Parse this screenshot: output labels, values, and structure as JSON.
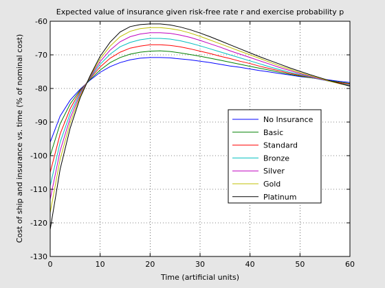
{
  "chart_data": {
    "type": "line",
    "title": "Expected value of insurance given risk-free rate r and exercise probability p",
    "xlabel": "Time (artificial units)",
    "ylabel": "Cost of ship and insurance vs. time (% of nominal cost)",
    "xlim": [
      0,
      60
    ],
    "ylim": [
      -130,
      -60
    ],
    "xticks": [
      0,
      10,
      20,
      30,
      40,
      50,
      60
    ],
    "yticks": [
      -130,
      -120,
      -110,
      -100,
      -90,
      -80,
      -70,
      -60
    ],
    "grid": true,
    "legend_position": "right",
    "x": [
      0,
      2,
      4,
      6,
      8,
      10,
      12,
      14,
      16,
      18,
      20,
      22,
      24,
      26,
      28,
      30,
      32,
      34,
      36,
      38,
      40,
      42,
      44,
      46,
      48,
      50,
      52,
      54,
      56,
      58,
      60
    ],
    "series": [
      {
        "name": "No Insurance",
        "color": "#0000ff",
        "values": [
          -96,
          -88.2,
          -83.5,
          -80.2,
          -77.5,
          -75.2,
          -73.5,
          -72.3,
          -71.5,
          -71.0,
          -70.8,
          -70.8,
          -70.9,
          -71.2,
          -71.5,
          -71.9,
          -72.3,
          -72.8,
          -73.3,
          -73.7,
          -74.2,
          -74.7,
          -75.1,
          -75.6,
          -76.0,
          -76.5,
          -76.8,
          -77.2,
          -77.5,
          -77.9,
          -78.2
        ]
      },
      {
        "name": "Basic",
        "color": "#008000",
        "values": [
          -100,
          -90.5,
          -84.6,
          -80.5,
          -77.3,
          -74.5,
          -72.3,
          -70.8,
          -69.8,
          -69.2,
          -68.9,
          -68.8,
          -69.0,
          -69.4,
          -69.9,
          -70.4,
          -71.0,
          -71.6,
          -72.2,
          -72.8,
          -73.4,
          -74.0,
          -74.6,
          -75.2,
          -75.8,
          -76.3,
          -76.8,
          -77.2,
          -77.7,
          -78.1,
          -78.5
        ]
      },
      {
        "name": "Standard",
        "color": "#ff0000",
        "values": [
          -105,
          -93.5,
          -86.0,
          -80.8,
          -77.0,
          -73.6,
          -71.0,
          -69.2,
          -68.0,
          -67.4,
          -67.0,
          -67.0,
          -67.2,
          -67.6,
          -68.2,
          -68.9,
          -69.6,
          -70.4,
          -71.1,
          -71.9,
          -72.6,
          -73.4,
          -74.1,
          -74.8,
          -75.5,
          -76.1,
          -76.7,
          -77.3,
          -77.8,
          -78.3,
          -78.7
        ]
      },
      {
        "name": "Bronze",
        "color": "#00bfbf",
        "values": [
          -109,
          -96.0,
          -87.4,
          -81.2,
          -76.8,
          -72.8,
          -69.8,
          -67.6,
          -66.3,
          -65.5,
          -65.1,
          -65.1,
          -65.3,
          -65.8,
          -66.5,
          -67.3,
          -68.2,
          -69.1,
          -70.0,
          -70.9,
          -71.8,
          -72.7,
          -73.6,
          -74.4,
          -75.2,
          -75.9,
          -76.6,
          -77.3,
          -77.9,
          -78.5,
          -79.0
        ]
      },
      {
        "name": "Silver",
        "color": "#bf00bf",
        "values": [
          -113,
          -98.5,
          -88.8,
          -81.7,
          -76.6,
          -72.0,
          -68.6,
          -66.1,
          -64.6,
          -63.8,
          -63.4,
          -63.4,
          -63.6,
          -64.1,
          -64.8,
          -65.7,
          -66.7,
          -67.7,
          -68.8,
          -69.8,
          -70.8,
          -71.8,
          -72.8,
          -73.8,
          -74.7,
          -75.6,
          -76.4,
          -77.2,
          -77.9,
          -78.6,
          -79.2
        ]
      },
      {
        "name": "Gold",
        "color": "#bfbf00",
        "values": [
          -117,
          -101.0,
          -90.2,
          -82.2,
          -76.4,
          -71.2,
          -67.4,
          -64.6,
          -63.0,
          -62.2,
          -61.9,
          -61.9,
          -62.2,
          -62.7,
          -63.5,
          -64.5,
          -65.6,
          -66.7,
          -67.8,
          -68.9,
          -70.0,
          -71.1,
          -72.2,
          -73.3,
          -74.3,
          -75.3,
          -76.2,
          -77.0,
          -77.9,
          -78.6,
          -79.3
        ]
      },
      {
        "name": "Platinum",
        "color": "#000000",
        "values": [
          -122,
          -104.0,
          -91.8,
          -82.8,
          -76.2,
          -70.4,
          -66.2,
          -63.2,
          -61.6,
          -61.0,
          -60.8,
          -60.8,
          -61.1,
          -61.7,
          -62.5,
          -63.5,
          -64.6,
          -65.8,
          -67.0,
          -68.2,
          -69.4,
          -70.6,
          -71.7,
          -72.8,
          -73.9,
          -74.9,
          -75.9,
          -76.8,
          -77.7,
          -78.5,
          -79.3
        ]
      }
    ]
  }
}
